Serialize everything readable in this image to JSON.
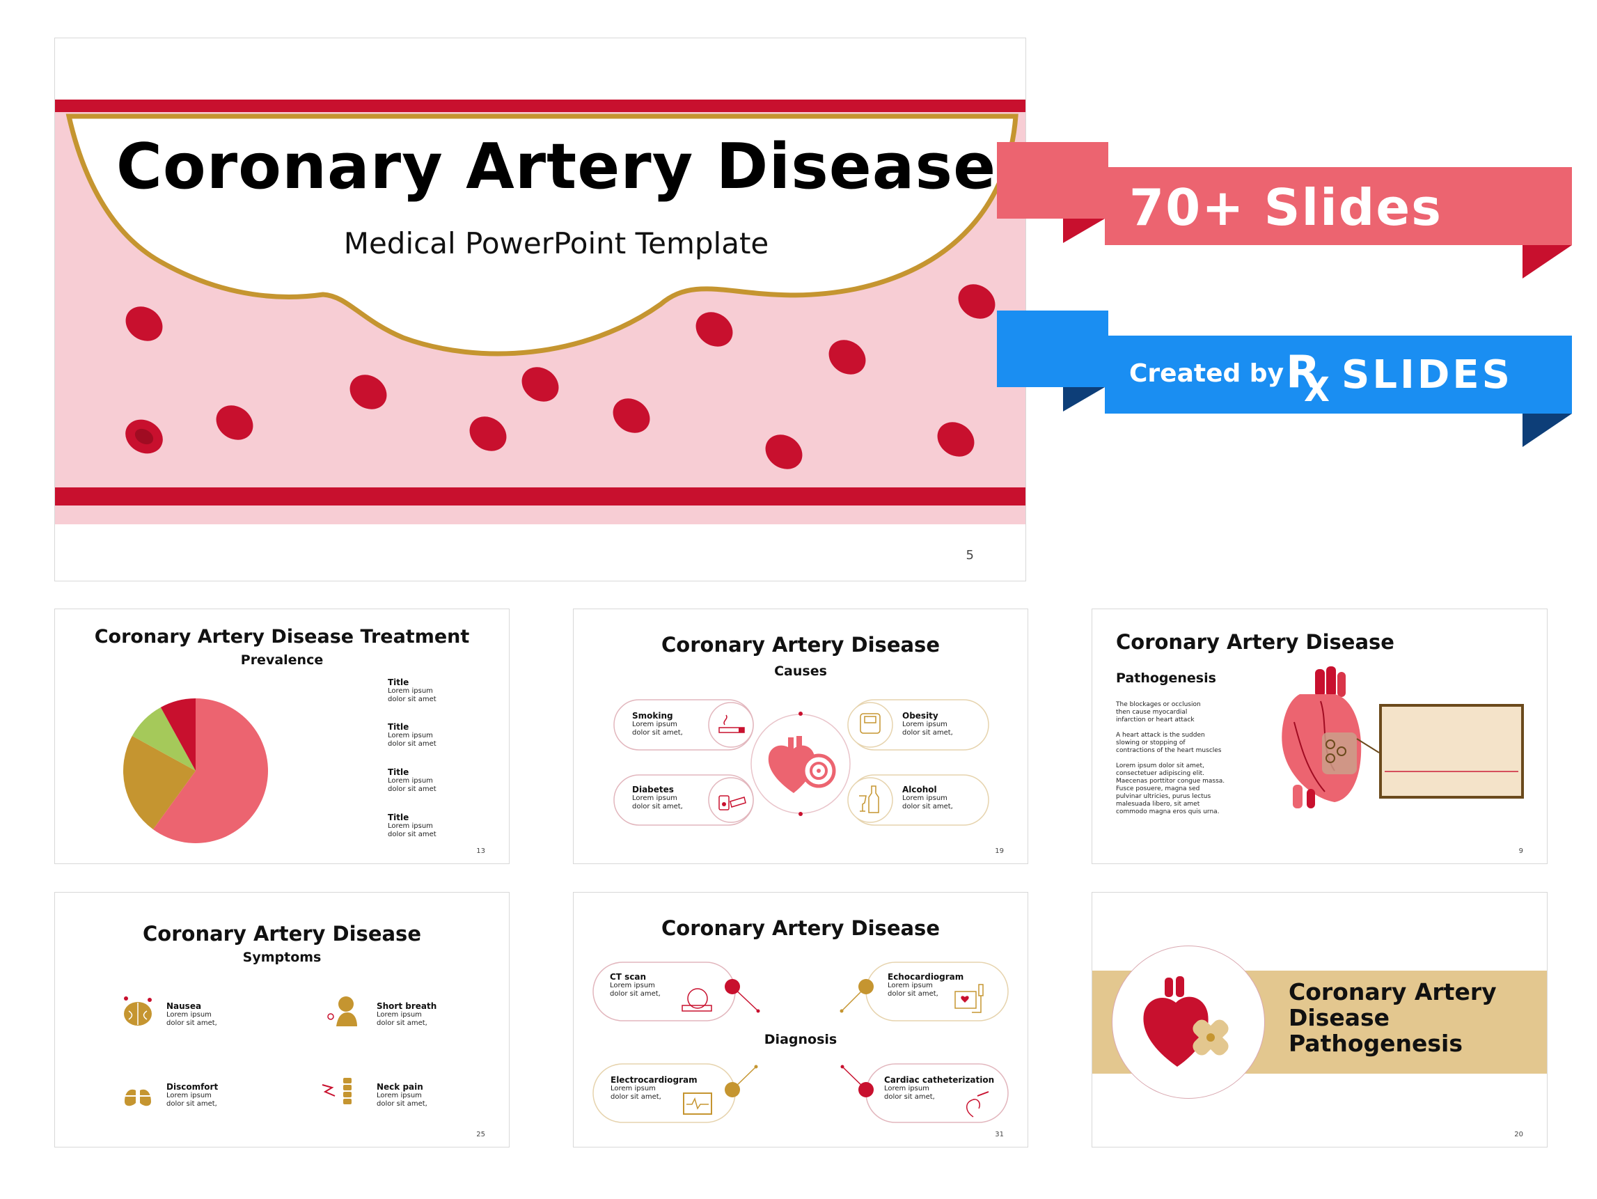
{
  "hero": {
    "title": "Coronary Artery Disease",
    "subtitle": "Medical PowerPoint Template",
    "page": "5"
  },
  "banners": {
    "slides": "70+ Slides",
    "created_by": "Created by",
    "brand_rx": "R",
    "brand_x": "X",
    "brand_name": "SLIDES"
  },
  "slide_treatment": {
    "title": "Coronary Artery Disease Treatment",
    "subtitle": "Prevalence",
    "legend": [
      {
        "title": "Title",
        "line1": "Lorem ipsum",
        "line2": "dolor sit amet"
      },
      {
        "title": "Title",
        "line1": "Lorem ipsum",
        "line2": "dolor sit amet"
      },
      {
        "title": "Title",
        "line1": "Lorem ipsum",
        "line2": "dolor sit amet"
      },
      {
        "title": "Title",
        "line1": "Lorem ipsum",
        "line2": "dolor sit amet"
      }
    ],
    "page": "13"
  },
  "slide_causes": {
    "title": "Coronary Artery Disease",
    "subtitle": "Causes",
    "items": [
      {
        "label": "Smoking",
        "line1": "Lorem ipsum",
        "line2": "dolor sit amet,"
      },
      {
        "label": "Obesity",
        "line1": "Lorem ipsum",
        "line2": "dolor sit amet,"
      },
      {
        "label": "Diabetes",
        "line1": "Lorem ipsum",
        "line2": "dolor sit amet,"
      },
      {
        "label": "Alcohol",
        "line1": "Lorem ipsum",
        "line2": "dolor sit amet,"
      }
    ],
    "page": "19"
  },
  "slide_pathogenesis": {
    "title": "Coronary Artery Disease",
    "subtitle": "Pathogenesis",
    "para1": [
      "The blockages or occlusion",
      "then cause myocardial",
      "infarction or heart attack"
    ],
    "para2": [
      "A heart attack is the sudden",
      "slowing or stopping of",
      "contractions of the heart muscles"
    ],
    "para3": [
      "Lorem ipsum dolor sit amet,",
      "consectetuer adipiscing elit.",
      "Maecenas porttitor congue massa.",
      "Fusce posuere, magna sed",
      "pulvinar ultricies, purus lectus",
      "malesuada libero, sit amet",
      "commodo magna eros quis urna."
    ],
    "page": "9"
  },
  "slide_symptoms": {
    "title": "Coronary Artery Disease",
    "subtitle": "Symptoms",
    "items": [
      {
        "label": "Nausea",
        "line1": "Lorem ipsum",
        "line2": "dolor sit amet,"
      },
      {
        "label": "Short breath",
        "line1": "Lorem ipsum",
        "line2": "dolor sit amet,"
      },
      {
        "label": "Discomfort",
        "line1": "Lorem ipsum",
        "line2": "dolor sit amet,"
      },
      {
        "label": "Neck pain",
        "line1": "Lorem ipsum",
        "line2": "dolor sit amet,"
      }
    ],
    "page": "25"
  },
  "slide_diagnosis": {
    "title": "Coronary Artery Disease",
    "center": "Diagnosis",
    "items": [
      {
        "label": "CT scan",
        "line1": "Lorem ipsum",
        "line2": "dolor sit amet,"
      },
      {
        "label": "Echocardiogram",
        "line1": "Lorem ipsum",
        "line2": "dolor sit amet,"
      },
      {
        "label": "Electrocardiogram",
        "line1": "Lorem ipsum",
        "line2": "dolor sit amet,"
      },
      {
        "label": "Cardiac catheterization",
        "line1": "Lorem ipsum",
        "line2": "dolor sit amet,"
      }
    ],
    "page": "31"
  },
  "slide_section": {
    "line1": "Coronary Artery",
    "line2": "Disease",
    "line3": "Pathogenesis",
    "page": "20"
  },
  "colors": {
    "crimson": "#c8102e",
    "pink": "#f7cdd4",
    "salmon": "#ec6470",
    "gold": "#c59530",
    "lime": "#a5c95a",
    "blue": "#1a8ef2",
    "navy": "#0d3e78",
    "tan": "#e3c78f"
  },
  "chart_data": {
    "type": "pie",
    "values": [
      60,
      23,
      9,
      8
    ],
    "colors": [
      "#ec6470",
      "#c59530",
      "#a5c95a",
      "#c8102e"
    ]
  }
}
